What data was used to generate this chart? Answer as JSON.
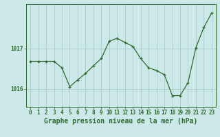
{
  "x": [
    0,
    1,
    2,
    3,
    4,
    5,
    6,
    7,
    8,
    9,
    10,
    11,
    12,
    13,
    14,
    15,
    16,
    17,
    18,
    19,
    20,
    21,
    22,
    23
  ],
  "y": [
    1016.68,
    1016.68,
    1016.68,
    1016.68,
    1016.52,
    1016.05,
    1016.22,
    1016.38,
    1016.57,
    1016.75,
    1017.18,
    1017.25,
    1017.15,
    1017.05,
    1016.75,
    1016.52,
    1016.45,
    1016.35,
    1015.83,
    1015.83,
    1016.15,
    1017.02,
    1017.52,
    1017.88
  ],
  "line_color": "#2d6a2d",
  "marker_color": "#2d6a2d",
  "bg_color": "#cce8e8",
  "grid_color": "#aacccc",
  "text_color": "#2d6a2d",
  "xlabel": "Graphe pression niveau de la mer (hPa)",
  "ytick_labels": [
    "1016",
    "1017"
  ],
  "ytick_values": [
    1016.0,
    1017.0
  ],
  "ylim": [
    1015.55,
    1018.1
  ],
  "xlim": [
    -0.5,
    23.5
  ],
  "tick_fontsize": 5.5,
  "label_fontsize": 7.0
}
